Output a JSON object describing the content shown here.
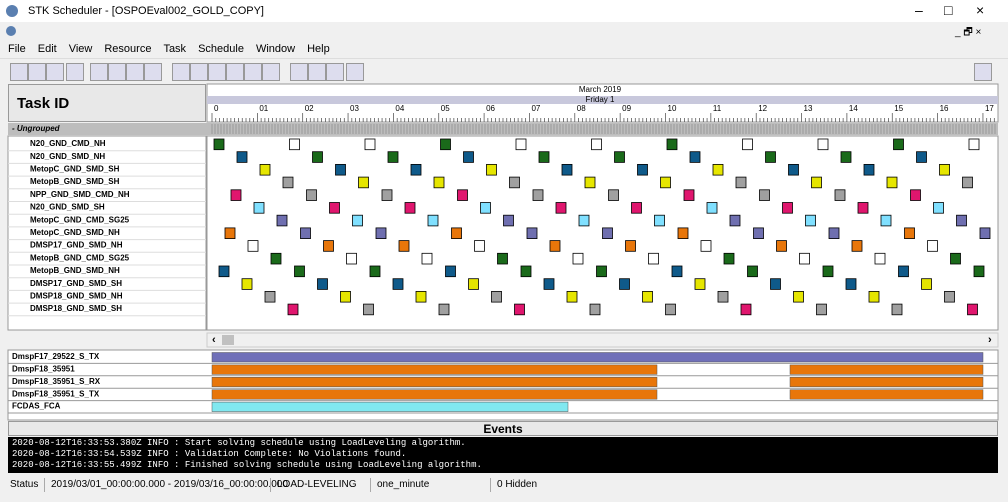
{
  "window": {
    "title": "STK Scheduler - [OSPOEval002_GOLD_COPY]",
    "menu": [
      "File",
      "Edit",
      "View",
      "Resource",
      "Task",
      "Schedule",
      "Window",
      "Help"
    ]
  },
  "gantt": {
    "header": "Task ID",
    "month": "March 2019",
    "day": "Friday 1",
    "hours": [
      "0",
      "01",
      "02",
      "03",
      "04",
      "05",
      "06",
      "07",
      "08",
      "09",
      "10",
      "11",
      "12",
      "13",
      "14",
      "15",
      "16",
      "17"
    ],
    "group": "- Ungrouped",
    "tasks": [
      "N20_GND_CMD_NH",
      "N20_GND_SMD_NH",
      "MetopC_GND_SMD_SH",
      "MetopB_GND_SMD_SH",
      "NPP_GND_SMD_CMD_NH",
      "N20_GND_SMD_SH",
      "MetopC_GND_CMD_SG25",
      "MetopC_GND_SMD_NH",
      "DMSP17_GND_SMD_NH",
      "MetopB_GND_CMD_SG25",
      "MetopB_GND_SMD_NH",
      "DMSP17_GND_SMD_SH",
      "DMSP18_GND_SMD_NH",
      "DMSP18_GND_SMD_SH"
    ]
  },
  "resources": {
    "rows": [
      "DmspF17_29522_S_TX",
      "DmspF18_35951",
      "DmspF18_35951_S_RX",
      "DmspF18_35951_S_TX",
      "FCDAS_FCA"
    ]
  },
  "events": {
    "title": "Events",
    "log": [
      "2020-08-12T16:33:53.380Z INFO : Start solving schedule using LoadLeveling algorithm.",
      "2020-08-12T16:33:54.539Z INFO : Validation Complete: No Violations found.",
      "2020-08-12T16:33:55.499Z INFO : Finished solving schedule using LoadLeveling algorithm."
    ]
  },
  "status": {
    "label": "Status",
    "range": "2019/03/01_00:00:00.000 - 2019/03/16_00:00:00.000",
    "algorithm": "LOAD-LEVELING",
    "interval": "one_minute",
    "hidden": "0 Hidden"
  }
}
